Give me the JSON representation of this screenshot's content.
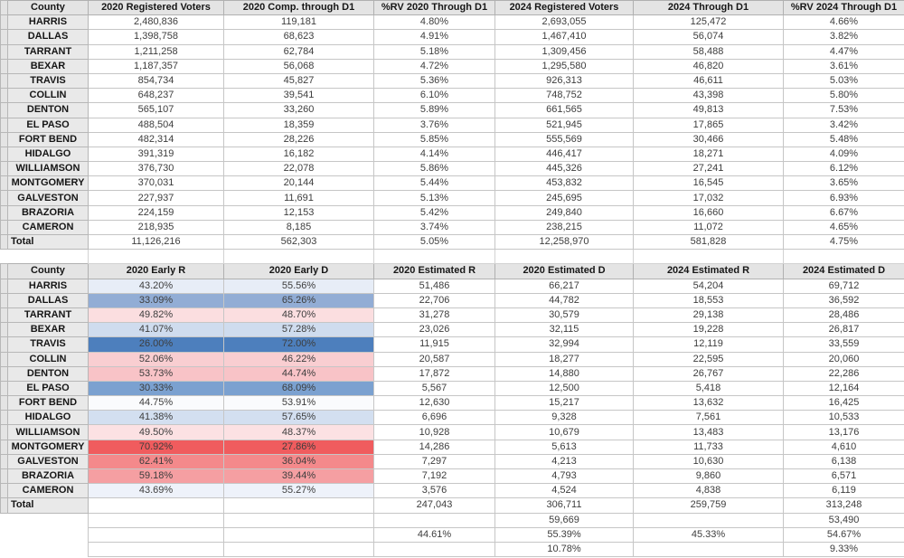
{
  "app": {
    "kind": "spreadsheet",
    "background": "#ffffff"
  },
  "colors": {
    "header_bg": "#e4e4e4",
    "county_col_bg": "#e9e9e9",
    "cell_border": "#c6c6c6",
    "header_border": "#b0b0b0",
    "data_text": "#3d3d3d",
    "header_text": "#161616",
    "scale_blue_max": "#4d7fbd",
    "scale_red_max": "#f05c5e"
  },
  "registration_table": {
    "columns": [
      "County",
      "2020 Registered Voters",
      "2020 Comp. through D1",
      "%RV 2020 Through D1",
      "2024 Registered Voters",
      "2024 Through D1",
      "%RV 2024 Through D1"
    ],
    "rows": [
      {
        "county": "HARRIS",
        "cells": [
          "2,480,836",
          "119,181",
          "4.80%",
          "2,693,055",
          "125,472",
          "4.66%"
        ]
      },
      {
        "county": "DALLAS",
        "cells": [
          "1,398,758",
          "68,623",
          "4.91%",
          "1,467,410",
          "56,074",
          "3.82%"
        ]
      },
      {
        "county": "TARRANT",
        "cells": [
          "1,211,258",
          "62,784",
          "5.18%",
          "1,309,456",
          "58,488",
          "4.47%"
        ]
      },
      {
        "county": "BEXAR",
        "cells": [
          "1,187,357",
          "56,068",
          "4.72%",
          "1,295,580",
          "46,820",
          "3.61%"
        ]
      },
      {
        "county": "TRAVIS",
        "cells": [
          "854,734",
          "45,827",
          "5.36%",
          "926,313",
          "46,611",
          "5.03%"
        ]
      },
      {
        "county": "COLLIN",
        "cells": [
          "648,237",
          "39,541",
          "6.10%",
          "748,752",
          "43,398",
          "5.80%"
        ]
      },
      {
        "county": "DENTON",
        "cells": [
          "565,107",
          "33,260",
          "5.89%",
          "661,565",
          "49,813",
          "7.53%"
        ]
      },
      {
        "county": "EL PASO",
        "cells": [
          "488,504",
          "18,359",
          "3.76%",
          "521,945",
          "17,865",
          "3.42%"
        ]
      },
      {
        "county": "FORT BEND",
        "cells": [
          "482,314",
          "28,226",
          "5.85%",
          "555,569",
          "30,466",
          "5.48%"
        ]
      },
      {
        "county": "HIDALGO",
        "cells": [
          "391,319",
          "16,182",
          "4.14%",
          "446,417",
          "18,271",
          "4.09%"
        ]
      },
      {
        "county": "WILLIAMSON",
        "cells": [
          "376,730",
          "22,078",
          "5.86%",
          "445,326",
          "27,241",
          "6.12%"
        ]
      },
      {
        "county": "MONTGOMERY",
        "cells": [
          "370,031",
          "20,144",
          "5.44%",
          "453,832",
          "16,545",
          "3.65%"
        ]
      },
      {
        "county": "GALVESTON",
        "cells": [
          "227,937",
          "11,691",
          "5.13%",
          "245,695",
          "17,032",
          "6.93%"
        ]
      },
      {
        "county": "BRAZORIA",
        "cells": [
          "224,159",
          "12,153",
          "5.42%",
          "249,840",
          "16,660",
          "6.67%"
        ]
      },
      {
        "county": "CAMERON",
        "cells": [
          "218,935",
          "8,185",
          "3.74%",
          "238,215",
          "11,072",
          "4.65%"
        ]
      }
    ],
    "total": {
      "label": "Total",
      "cells": [
        "11,126,216",
        "562,303",
        "5.05%",
        "12,258,970",
        "581,828",
        "4.75%"
      ]
    }
  },
  "early_vote_table": {
    "columns": [
      "County",
      "2020 Early R",
      "2020 Early D",
      "2020 Estimated R",
      "2020 Estimated D",
      "2024 Estimated R",
      "2024 Estimated D"
    ],
    "rows": [
      {
        "county": "HARRIS",
        "early_r": "43.20%",
        "early_d": "55.56%",
        "cells": [
          "51,486",
          "66,217",
          "54,204",
          "69,712"
        ],
        "shade": "#e7edf7"
      },
      {
        "county": "DALLAS",
        "early_r": "33.09%",
        "early_d": "65.26%",
        "cells": [
          "22,706",
          "44,782",
          "18,553",
          "36,592"
        ],
        "shade": "#92add5"
      },
      {
        "county": "TARRANT",
        "early_r": "49.82%",
        "early_d": "48.70%",
        "cells": [
          "31,278",
          "30,579",
          "29,138",
          "28,486"
        ],
        "shade": "#fbdee0"
      },
      {
        "county": "BEXAR",
        "early_r": "41.07%",
        "early_d": "57.28%",
        "cells": [
          "23,026",
          "32,115",
          "19,228",
          "26,817"
        ],
        "shade": "#cfdcee"
      },
      {
        "county": "TRAVIS",
        "early_r": "26.00%",
        "early_d": "72.00%",
        "cells": [
          "11,915",
          "32,994",
          "12,119",
          "33,559"
        ],
        "shade": "#4d7fbd"
      },
      {
        "county": "COLLIN",
        "early_r": "52.06%",
        "early_d": "46.22%",
        "cells": [
          "20,587",
          "18,277",
          "22,595",
          "20,060"
        ],
        "shade": "#f9ced1"
      },
      {
        "county": "DENTON",
        "early_r": "53.73%",
        "early_d": "44.74%",
        "cells": [
          "17,872",
          "14,880",
          "26,767",
          "22,286"
        ],
        "shade": "#f8c3c7"
      },
      {
        "county": "EL PASO",
        "early_r": "30.33%",
        "early_d": "68.09%",
        "cells": [
          "5,567",
          "12,500",
          "5,418",
          "12,164"
        ],
        "shade": "#7ba1d0"
      },
      {
        "county": "FORT BEND",
        "early_r": "44.75%",
        "early_d": "53.91%",
        "cells": [
          "12,630",
          "15,217",
          "13,632",
          "16,425"
        ],
        "shade": "#fafbfd"
      },
      {
        "county": "HIDALGO",
        "early_r": "41.38%",
        "early_d": "57.65%",
        "cells": [
          "6,696",
          "9,328",
          "7,561",
          "10,533"
        ],
        "shade": "#d3dff0"
      },
      {
        "county": "WILLIAMSON",
        "early_r": "49.50%",
        "early_d": "48.37%",
        "cells": [
          "10,928",
          "10,679",
          "13,483",
          "13,176"
        ],
        "shade": "#fce1e3"
      },
      {
        "county": "MONTGOMERY",
        "early_r": "70.92%",
        "early_d": "27.86%",
        "cells": [
          "14,286",
          "5,613",
          "11,733",
          "4,610"
        ],
        "shade": "#f05c5e"
      },
      {
        "county": "GALVESTON",
        "early_r": "62.41%",
        "early_d": "36.04%",
        "cells": [
          "7,297",
          "4,213",
          "10,630",
          "6,138"
        ],
        "shade": "#f4898b"
      },
      {
        "county": "BRAZORIA",
        "early_r": "59.18%",
        "early_d": "39.44%",
        "cells": [
          "7,192",
          "4,793",
          "9,860",
          "6,571"
        ],
        "shade": "#f59fa2"
      },
      {
        "county": "CAMERON",
        "early_r": "43.69%",
        "early_d": "55.27%",
        "cells": [
          "3,576",
          "4,524",
          "4,838",
          "6,119"
        ],
        "shade": "#eef2fa"
      }
    ],
    "total": {
      "label": "Total",
      "cells": [
        "",
        "",
        "247,043",
        "306,711",
        "259,759",
        "313,248"
      ]
    },
    "summary_rows": [
      {
        "cells": [
          "",
          "",
          "",
          "59,669",
          "",
          "53,490"
        ]
      },
      {
        "cells": [
          "",
          "",
          "44.61%",
          "55.39%",
          "45.33%",
          "54.67%"
        ]
      },
      {
        "cells": [
          "",
          "",
          "",
          "10.78%",
          "",
          "9.33%"
        ]
      }
    ]
  }
}
